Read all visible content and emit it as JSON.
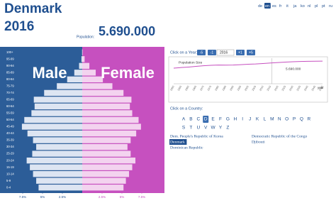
{
  "header": {
    "country": "Denmark",
    "year": "2016",
    "population_label": "Population:",
    "population": "5.690.000"
  },
  "languages": {
    "items": [
      "de",
      "en",
      "es",
      "fr",
      "it",
      "ja",
      "ko",
      "nl",
      "pl",
      "pt",
      "ru",
      "zh"
    ],
    "active": "en"
  },
  "pyramid": {
    "male_label": "Male",
    "female_label": "Female",
    "age_groups": [
      "100+",
      "95-99",
      "90-94",
      "85-89",
      "80-84",
      "75-79",
      "70-74",
      "65-69",
      "60-64",
      "55-59",
      "50-54",
      "45-49",
      "40-44",
      "35-39",
      "30-34",
      "25-29",
      "20-24",
      "15-19",
      "10-14",
      "5-9",
      "0-4"
    ],
    "male": [
      0.02,
      0.1,
      0.4,
      1.0,
      1.9,
      3.2,
      4.8,
      6.1,
      6.0,
      6.4,
      7.3,
      7.6,
      6.9,
      6.2,
      5.8,
      6.3,
      7.0,
      6.6,
      6.2,
      5.8,
      5.5
    ],
    "female": [
      0.05,
      0.3,
      0.9,
      1.7,
      2.6,
      3.8,
      5.2,
      6.2,
      6.0,
      6.3,
      7.1,
      7.4,
      6.8,
      6.1,
      5.7,
      6.1,
      6.7,
      6.3,
      5.9,
      5.5,
      5.2
    ],
    "xlim": [
      0,
      10.36
    ],
    "male_ticks": [
      {
        "value": 7.5,
        "label": "7.5%"
      },
      {
        "value": 5,
        "label": "5%"
      },
      {
        "value": 2.5,
        "label": "2.5%"
      }
    ],
    "female_ticks": [
      {
        "value": 2.5,
        "label": "2.5%"
      },
      {
        "value": 5,
        "label": "5%"
      },
      {
        "value": 7.5,
        "label": "7.5%"
      }
    ]
  },
  "year_control": {
    "label": "Click on a Year:",
    "buttons": [
      "-5",
      "-1",
      "+1",
      "+5"
    ],
    "year": "2016"
  },
  "year_chart": {
    "label": "Population Size",
    "axis_label": "year",
    "value_label": "5.690.000",
    "current_year": 2016,
    "years": [
      1950,
      1955,
      1960,
      1965,
      1970,
      1975,
      1980,
      1985,
      1990,
      1995,
      2000,
      2005,
      2010,
      2015,
      2020,
      2025,
      2030,
      2035,
      2040,
      2045,
      2050
    ],
    "values": [
      4270000,
      4440000,
      4580000,
      4760000,
      4930000,
      5060000,
      5120000,
      5110000,
      5140000,
      5230000,
      5340000,
      5420000,
      5550000,
      5680000,
      5800000,
      5920000,
      6020000,
      6100000,
      6150000,
      6180000,
      6200000
    ],
    "xlim": [
      1950,
      2050
    ],
    "ylim": [
      0,
      7000000
    ]
  },
  "country_control": {
    "label": "Click on a Country:",
    "letters": [
      "A",
      "B",
      "C",
      "D",
      "E",
      "F",
      "G",
      "H",
      "I",
      "J",
      "K",
      "L",
      "M",
      "N",
      "O",
      "P",
      "Q",
      "R",
      "S",
      "T",
      "U",
      "V",
      "W",
      "Y",
      "Z"
    ],
    "active_letter": "D",
    "columns": [
      [
        "Dem. People's Republic of Korea",
        "Denmark",
        "Dominican Republic"
      ],
      [
        "Democratic Republic of the Congo",
        "Djibouti"
      ]
    ],
    "selected": "Denmark"
  }
}
